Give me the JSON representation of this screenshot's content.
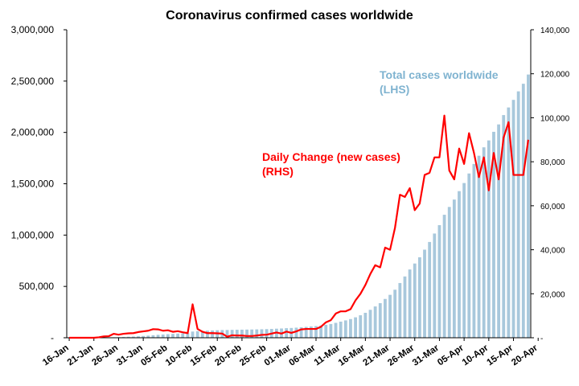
{
  "chart_data": {
    "type": "bar+line",
    "title": "Coronavirus confirmed cases worldwide",
    "x_tick_labels": [
      "16-Jan",
      "21-Jan",
      "26-Jan",
      "31-Jan",
      "05-Feb",
      "10-Feb",
      "15-Feb",
      "20-Feb",
      "25-Feb",
      "01-Mar",
      "06-Mar",
      "11-Mar",
      "16-Mar",
      "21-Mar",
      "26-Mar",
      "31-Mar",
      "05-Apr",
      "10-Apr",
      "15-Apr",
      "20-Apr"
    ],
    "left_axis": {
      "ylim": [
        0,
        3000000
      ],
      "tick_labels": [
        "-",
        "500,000",
        "1,000,000",
        "1,500,000",
        "2,000,000",
        "2,500,000",
        "3,000,000"
      ]
    },
    "right_axis": {
      "ylim": [
        0,
        140000
      ],
      "tick_labels": [
        "-",
        "20,000",
        "40,000",
        "60,000",
        "80,000",
        "100,000",
        "120,000",
        "140,000"
      ]
    },
    "annotations": {
      "total": {
        "line1": "Total cases worldwide",
        "line2": "(LHS)",
        "color": "#7fb3d0"
      },
      "daily": {
        "line1": "Daily Change (new cases)",
        "line2": "(RHS)",
        "color": "#ff0000"
      }
    },
    "series": [
      {
        "name": "Total cases worldwide",
        "axis": "left",
        "kind": "bar",
        "color": "#a8c8dc",
        "values": [
          300,
          400,
          500,
          600,
          800,
          900,
          1300,
          2000,
          2800,
          4600,
          6000,
          7800,
          9800,
          11900,
          14500,
          17400,
          20600,
          24500,
          28300,
          31500,
          34900,
          37600,
          40600,
          43100,
          45200,
          60400,
          64400,
          67100,
          69200,
          71300,
          73300,
          75200,
          75700,
          76800,
          77800,
          78800,
          79600,
          80400,
          81400,
          82700,
          84100,
          86000,
          88400,
          90300,
          93100,
          95300,
          98200,
          102000,
          106000,
          110000,
          114000,
          119000,
          126000,
          134000,
          145000,
          157000,
          169000,
          182000,
          199000,
          219000,
          243000,
          272000,
          305000,
          337000,
          378000,
          418000,
          468000,
          533000,
          597000,
          665000,
          723000,
          784000,
          858000,
          933000,
          1015000,
          1097000,
          1198000,
          1274000,
          1346000,
          1428000,
          1507000,
          1600000,
          1693000,
          1773000,
          1855000,
          1922000,
          2006000,
          2078000,
          2169000,
          2243000,
          2317000,
          2400000,
          2474000,
          2564000
        ]
      },
      {
        "name": "Daily Change (new cases)",
        "axis": "right",
        "kind": "line",
        "color": "#ff0000",
        "values": [
          0,
          0,
          0,
          0,
          0,
          0,
          200,
          600,
          700,
          1800,
          1400,
          1800,
          2000,
          2100,
          2600,
          2900,
          3200,
          3900,
          3800,
          3200,
          3400,
          2700,
          3000,
          2500,
          2100,
          15200,
          4000,
          2700,
          2100,
          2100,
          2000,
          1900,
          500,
          1100,
          1000,
          1000,
          800,
          800,
          1000,
          1300,
          1400,
          1900,
          2400,
          1900,
          2800,
          2200,
          2900,
          3800,
          4000,
          4000,
          4000,
          5000,
          7000,
          8000,
          11000,
          12000,
          12000,
          13000,
          17000,
          20000,
          24000,
          29000,
          33000,
          32000,
          41000,
          40000,
          50000,
          65000,
          64000,
          68000,
          58000,
          61000,
          74000,
          75000,
          82000,
          82000,
          101000,
          76000,
          72000,
          86000,
          79000,
          93000,
          84000,
          73000,
          82000,
          67000,
          84000,
          72000,
          91000,
          98000,
          74000,
          74000,
          74000,
          90000
        ]
      }
    ]
  }
}
